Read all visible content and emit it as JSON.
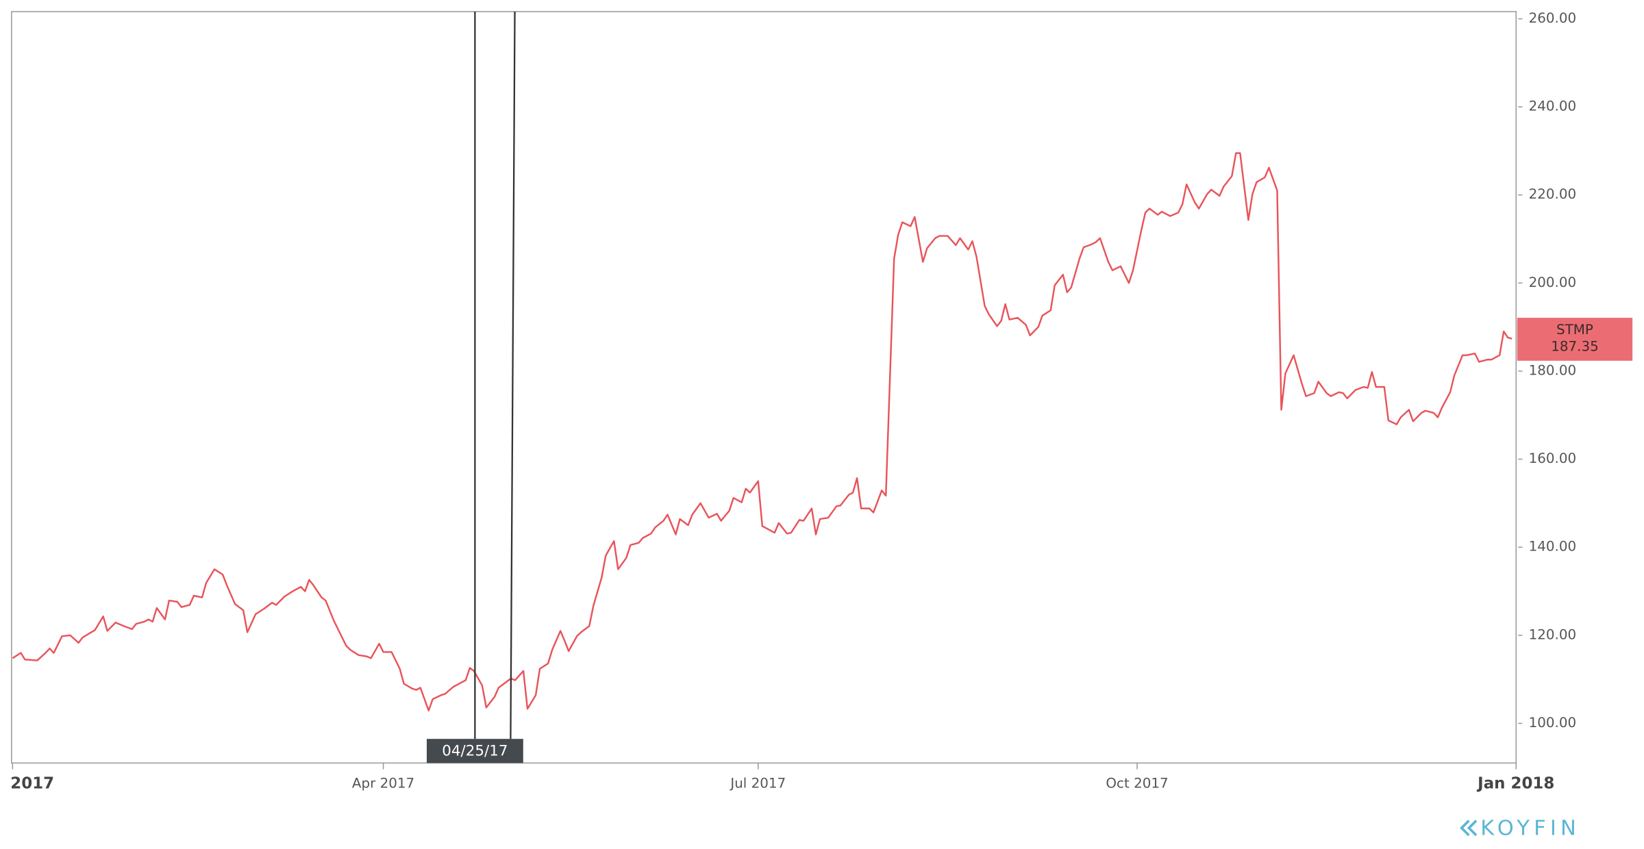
{
  "chart_data": {
    "type": "line",
    "x": [
      0,
      2,
      3,
      6,
      8,
      9,
      10,
      12,
      14,
      16,
      17,
      20,
      22,
      23,
      25,
      27,
      29,
      30,
      32,
      33,
      34,
      35,
      37,
      38,
      40,
      41,
      43,
      44,
      46,
      47,
      49,
      51,
      52,
      54,
      56,
      57,
      59,
      61,
      63,
      64,
      66,
      68,
      70,
      71,
      72,
      73,
      75,
      76,
      78,
      79,
      81,
      82,
      84,
      86,
      87,
      89,
      90,
      92,
      94,
      95,
      97,
      98,
      99,
      101,
      102,
      104,
      105,
      107,
      108,
      110,
      111,
      112,
      114,
      115,
      117,
      118,
      120,
      121,
      122,
      124,
      125,
      127,
      128,
      130,
      131,
      133,
      134,
      135,
      137,
      138,
      140,
      141,
      143,
      144,
      146,
      147,
      149,
      150,
      152,
      153,
      155,
      156,
      158,
      159,
      161,
      162,
      164,
      165,
      167,
      169,
      171,
      172,
      174,
      175,
      177,
      178,
      179,
      181,
      182,
      183,
      185,
      186,
      188,
      189,
      191,
      192,
      194,
      195,
      196,
      198,
      200,
      201,
      203,
      204,
      205,
      206,
      208,
      209,
      211,
      212,
      214,
      215,
      216,
      218,
      219,
      221,
      222,
      224,
      225,
      227,
      229,
      230,
      232,
      233,
      234,
      236,
      237,
      239,
      240,
      241,
      242,
      244,
      246,
      247,
      249,
      250,
      252,
      253,
      255,
      256,
      257,
      259,
      260,
      262,
      263,
      264,
      266,
      267,
      269,
      271,
      272,
      274,
      275,
      276,
      278,
      279,
      281,
      283,
      284,
      285,
      287,
      288,
      290,
      291,
      293,
      294,
      296,
      297,
      298,
      300,
      301,
      302,
      304,
      305,
      307,
      308,
      309,
      311,
      313,
      314,
      316,
      317,
      319,
      320,
      322,
      323,
      324,
      326,
      328,
      329,
      330,
      331,
      333,
      334,
      336,
      337,
      339,
      340,
      342,
      343,
      345,
      346,
      347,
      349,
      350,
      352,
      353,
      355,
      356,
      358,
      359,
      361,
      362,
      363,
      364
    ],
    "series": [
      {
        "name": "STMP",
        "color": "#e8545a",
        "values": [
          114.8,
          116,
          114.5,
          114.3,
          116,
          117,
          116,
          119.8,
          120,
          118.3,
          119.5,
          121.2,
          124.3,
          121,
          122.9,
          122.1,
          121.4,
          122.6,
          123.1,
          123.6,
          123.1,
          126.2,
          123.6,
          127.9,
          127.6,
          126.4,
          126.9,
          129,
          128.6,
          131.9,
          135,
          133.8,
          131.4,
          127.1,
          125.7,
          120.7,
          124.8,
          126,
          127.4,
          126.9,
          128.8,
          130,
          131,
          130,
          132.6,
          131.4,
          128.6,
          127.9,
          123.3,
          121.4,
          117.6,
          116.7,
          115.5,
          115.2,
          114.8,
          118.1,
          116.2,
          116.2,
          112.4,
          109,
          107.9,
          107.6,
          108.1,
          102.9,
          105.5,
          106.4,
          106.7,
          108.3,
          108.8,
          109.8,
          112.6,
          111.9,
          108.6,
          103.6,
          106,
          108.1,
          109.5,
          110.2,
          109.8,
          111.9,
          103.3,
          106.4,
          112.4,
          113.6,
          116.7,
          121,
          118.8,
          116.4,
          119.8,
          120.7,
          122.1,
          126.7,
          133.1,
          138.1,
          141.4,
          135,
          137.6,
          140.5,
          141,
          142.1,
          143.1,
          144.5,
          146,
          147.4,
          142.9,
          146.4,
          145,
          147.4,
          150,
          146.7,
          147.6,
          146,
          148.3,
          151.2,
          150.2,
          153.3,
          152.4,
          155,
          144.8,
          144.3,
          143.3,
          145.5,
          143.1,
          143.3,
          146.2,
          146,
          148.8,
          142.9,
          146.4,
          146.7,
          149.3,
          149.5,
          151.9,
          152.4,
          155.7,
          148.8,
          148.8,
          147.9,
          152.9,
          151.7,
          205.5,
          211,
          213.8,
          212.9,
          215,
          204.8,
          207.9,
          210.2,
          210.7,
          210.7,
          208.6,
          210.2,
          207.6,
          209.5,
          206,
          194.8,
          192.9,
          190.2,
          191.4,
          195.2,
          191.7,
          192.1,
          190.5,
          188.1,
          190,
          192.6,
          193.8,
          199.5,
          201.9,
          197.9,
          199,
          205.5,
          208.1,
          208.8,
          209.3,
          210.2,
          204.8,
          202.9,
          203.8,
          200,
          202.9,
          211.9,
          216,
          216.9,
          215.5,
          216.2,
          215.2,
          216,
          217.9,
          222.4,
          218.3,
          216.9,
          220.2,
          221.2,
          219.8,
          221.9,
          224.3,
          229.5,
          229.5,
          214.3,
          220.2,
          222.9,
          224,
          226.2,
          221,
          171.2,
          179.5,
          183.6,
          177.1,
          174.3,
          175,
          177.6,
          175,
          174.3,
          175.2,
          175,
          173.8,
          175.7,
          176.4,
          176.2,
          179.8,
          176.4,
          176.4,
          168.8,
          167.9,
          169.5,
          171.2,
          168.6,
          170.5,
          171,
          170.5,
          169.5,
          171.7,
          175.2,
          179,
          183.6,
          183.6,
          184,
          182.1,
          182.6,
          182.6,
          183.6,
          189,
          187.6,
          187.35
        ]
      }
    ],
    "xlim": [
      0,
      365
    ],
    "xticks": [
      {
        "value": 0,
        "label": "2017"
      },
      {
        "value": 90,
        "label": "Apr 2017"
      },
      {
        "value": 181,
        "label": "Jul 2017"
      },
      {
        "value": 273,
        "label": "Oct 2017"
      },
      {
        "value": 365,
        "label": "Jan 2018"
      }
    ],
    "ylim": [
      91,
      261.4
    ],
    "yticks": [
      {
        "value": 100,
        "label": "100.00"
      },
      {
        "value": 120,
        "label": "120.00"
      },
      {
        "value": 140,
        "label": "140.00"
      },
      {
        "value": 160,
        "label": "160.00"
      },
      {
        "value": 180,
        "label": "180.00"
      },
      {
        "value": 200,
        "label": "200.00"
      },
      {
        "value": 220,
        "label": "220.00"
      },
      {
        "value": 240,
        "label": "240.00"
      },
      {
        "value": 260,
        "label": "260.00"
      }
    ],
    "crosshair_label": "04/25/17",
    "brand": "KOYFIN"
  }
}
